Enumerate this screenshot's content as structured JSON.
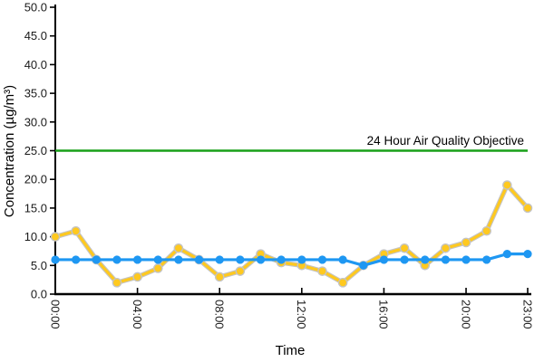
{
  "chart_data": {
    "type": "line",
    "title": "",
    "xlabel": "Time",
    "ylabel": "Concentration (µg/m³)",
    "ylim": [
      0,
      50
    ],
    "ytick_step": 5,
    "ytick_labels": [
      "0.0",
      "5.0",
      "10.0",
      "15.0",
      "20.0",
      "25.0",
      "30.0",
      "35.0",
      "40.0",
      "45.0",
      "50.0"
    ],
    "x_hour_count": 24,
    "xtick_hours": [
      0,
      4,
      8,
      12,
      16,
      20,
      23
    ],
    "xtick_labels": [
      "00:00",
      "04:00",
      "08:00",
      "12:00",
      "16:00",
      "20:00",
      "23:00"
    ],
    "grid": false,
    "legend": "none",
    "axis_color": "#000000",
    "tick_label_color": "#1a1a1a",
    "series": [
      {
        "id": "series-1",
        "color": "#FFC91F",
        "marker_outline": "#C4C4C4",
        "values": [
          10,
          11,
          6,
          2,
          3,
          4.5,
          8,
          6,
          3,
          4,
          7,
          5.5,
          5,
          4,
          2,
          5,
          7,
          8,
          5,
          8,
          9,
          11,
          19,
          15
        ]
      },
      {
        "id": "series-2",
        "color": "#1E97F2",
        "marker_outline": "none",
        "values": [
          6,
          6,
          6,
          6,
          6,
          6,
          6,
          6,
          6,
          6,
          6,
          6,
          6,
          6,
          6,
          5,
          6,
          6,
          6,
          6,
          6,
          6,
          7,
          7
        ]
      }
    ],
    "reference_line": {
      "value": 25,
      "label": "24 Hour Air Quality Objective",
      "color": "#18A018"
    }
  }
}
